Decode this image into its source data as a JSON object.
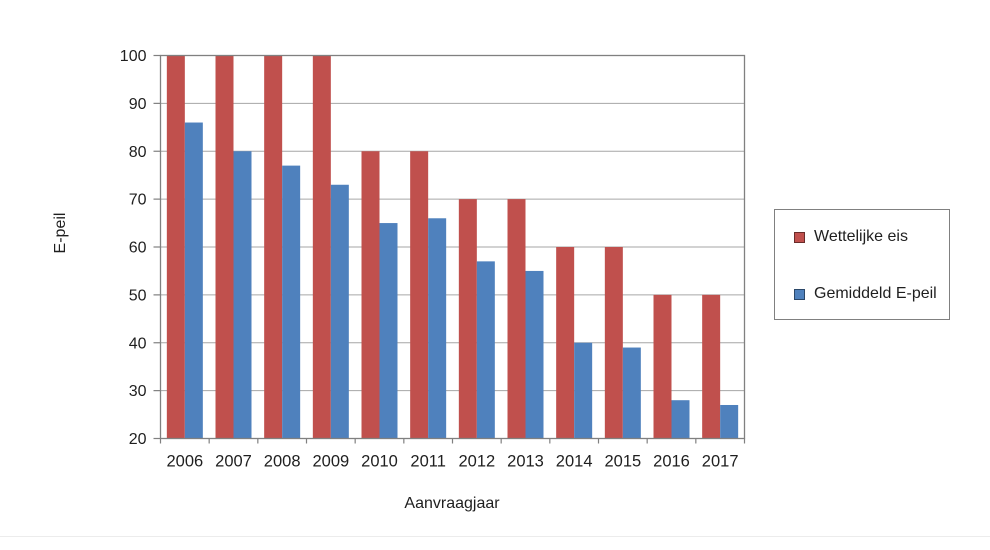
{
  "chart_data": {
    "type": "bar",
    "title": "",
    "xlabel": "Aanvraagjaar",
    "ylabel": "E-peil",
    "categories": [
      "2006",
      "2007",
      "2008",
      "2009",
      "2010",
      "2011",
      "2012",
      "2013",
      "2014",
      "2015",
      "2016",
      "2017"
    ],
    "series": [
      {
        "name": "Wettelijke eis",
        "color": "#C0504D",
        "values": [
          100,
          100,
          100,
          100,
          80,
          80,
          70,
          70,
          60,
          60,
          50,
          50
        ]
      },
      {
        "name": "Gemiddeld E-peil",
        "color": "#4F81BD",
        "values": [
          86,
          80,
          77,
          73,
          65,
          66,
          57,
          55,
          40,
          39,
          28,
          27
        ]
      }
    ],
    "ylim": [
      20,
      100
    ],
    "yticks": [
      20,
      30,
      40,
      50,
      60,
      70,
      80,
      90,
      100
    ],
    "grid": true,
    "legend_position": "right",
    "colors": {
      "gridline": "#A6A6A6",
      "axis": "#808080",
      "text": "#1F1F1F",
      "legend_border": "#808080",
      "background": "#FFFFFF"
    }
  }
}
